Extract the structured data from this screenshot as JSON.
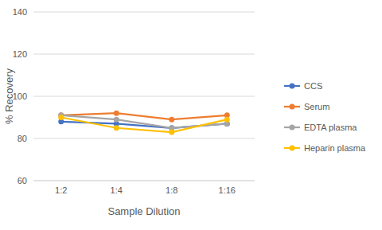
{
  "chart_data": {
    "type": "line",
    "x_label": "Sample Dilution",
    "y_label": "% Recovery",
    "categories": [
      "1:2",
      "1:4",
      "1:8",
      "1:16"
    ],
    "series": [
      {
        "name": "CCS",
        "color": "#4472c4",
        "values": [
          88,
          87,
          85,
          87
        ]
      },
      {
        "name": "Serum",
        "color": "#ed7d31",
        "values": [
          91,
          92,
          89,
          91
        ]
      },
      {
        "name": "EDTA plasma",
        "color": "#a5a5a5",
        "values": [
          91,
          89,
          85,
          87
        ]
      },
      {
        "name": "Heparin plasma",
        "color": "#ffc000",
        "values": [
          90,
          85,
          83,
          89
        ]
      }
    ],
    "ylim": [
      60,
      140
    ],
    "yticks": [
      60,
      80,
      100,
      120,
      140
    ],
    "grid": true,
    "legend": "right",
    "marker": "circle"
  }
}
